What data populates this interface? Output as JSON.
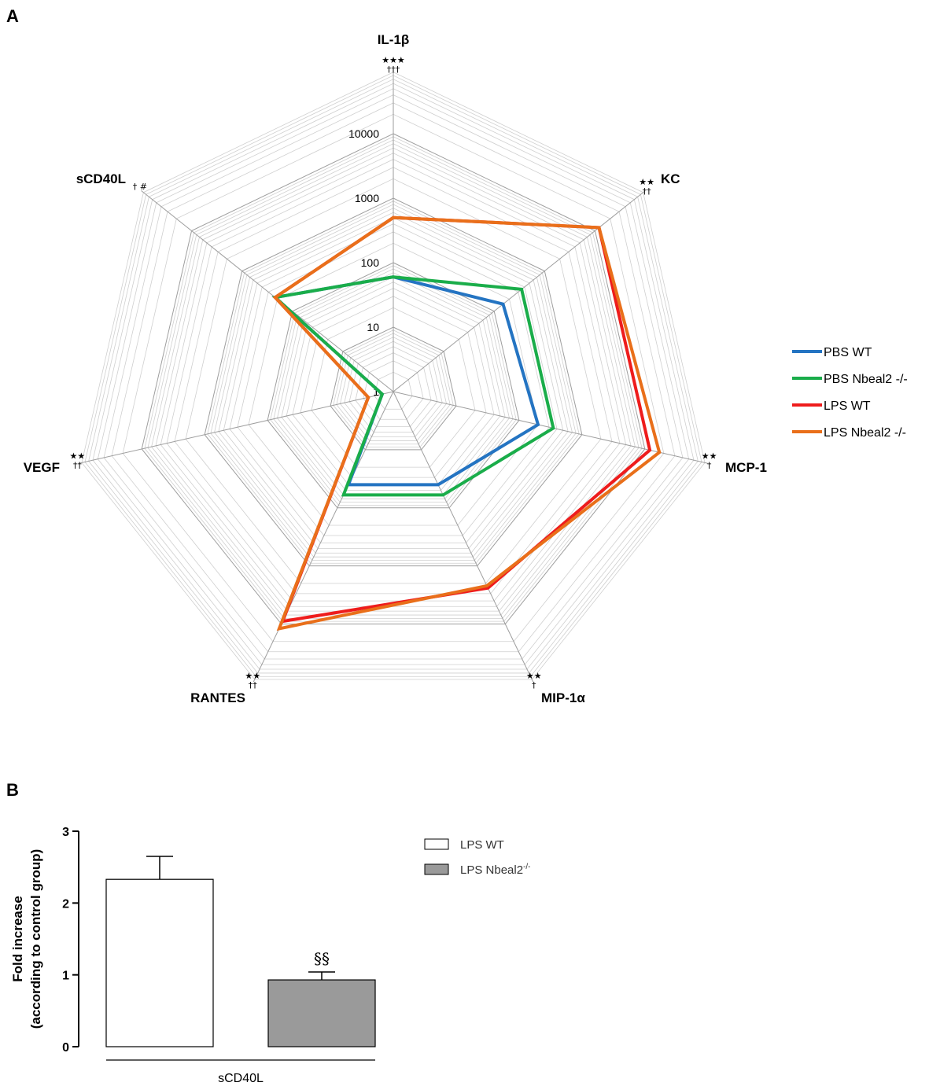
{
  "panel_a": {
    "letter": "A",
    "chart_data": {
      "type": "radar",
      "scale": "log10",
      "axes": [
        "IL-1β",
        "KC",
        "MCP-1",
        "MIP-1α",
        "RANTES",
        "VEGF",
        "sCD40L"
      ],
      "ticks": [
        1,
        10,
        100,
        1000,
        10000
      ],
      "tick_labels": [
        "1",
        "10",
        "100",
        "1000",
        "10000"
      ],
      "range": [
        1,
        100000
      ],
      "significance": [
        "★★★\n†††",
        "★★\n††",
        "★★\n†",
        "★★\n†",
        "★★\n††",
        "★★\n††",
        "†  #"
      ],
      "series": [
        {
          "name": "PBS WT",
          "color": "#2474c2",
          "values": [
            60,
            150,
            200,
            40,
            40,
            1.5,
            220
          ]
        },
        {
          "name": "PBS Nbeal2 -/-",
          "color": "#1aad4a",
          "values": [
            60,
            350,
            350,
            60,
            60,
            1.5,
            220
          ]
        },
        {
          "name": "LPS WT",
          "color": "#ee1c1c",
          "values": [
            500,
            12000,
            12000,
            2400,
            9000,
            2.5,
            220
          ]
        },
        {
          "name": "LPS Nbeal2 -/-",
          "color": "#e96f1a",
          "values": [
            500,
            12000,
            17000,
            2200,
            12000,
            2.5,
            220
          ]
        }
      ]
    }
  },
  "panel_b": {
    "letter": "B",
    "chart_data": {
      "type": "bar",
      "categories": [
        "sCD40L"
      ],
      "series": [
        {
          "name": "LPS WT",
          "legend_name": "LPS WT",
          "legend_sup": "",
          "color": "#ffffff",
          "values": [
            2.33
          ],
          "error": [
            0.32
          ]
        },
        {
          "name": "LPS Nbeal2-/-",
          "legend_name": "LPS Nbeal2",
          "legend_sup": "-/-",
          "color": "#9a9a9a",
          "values": [
            0.93
          ],
          "error": [
            0.11
          ]
        }
      ],
      "ylabel_line1": "Fold increase",
      "ylabel_line2": "(according to control group)",
      "ylim": [
        0,
        3
      ],
      "yticks": [
        "0",
        "1",
        "2",
        "3"
      ],
      "annotation": "§§"
    }
  }
}
